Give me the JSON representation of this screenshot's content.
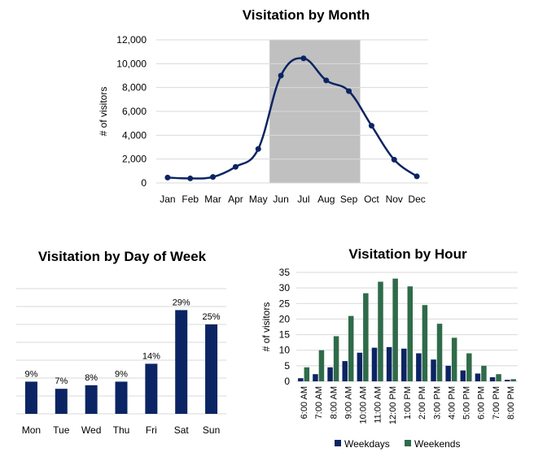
{
  "colors": {
    "navy": "#0b2463",
    "green": "#2f6b4a",
    "highlight": "#c0c0c0"
  },
  "chart_data": [
    {
      "type": "line",
      "title": "Visitation by Month",
      "ylabel": "# of visitors",
      "categories": [
        "Jan",
        "Feb",
        "Mar",
        "Apr",
        "May",
        "Jun",
        "Jul",
        "Aug",
        "Sep",
        "Oct",
        "Nov",
        "Dec"
      ],
      "values": [
        450,
        380,
        500,
        1350,
        2850,
        9000,
        10450,
        8600,
        7700,
        4800,
        1950,
        550
      ],
      "ylim": [
        0,
        12000
      ],
      "yticks": [
        0,
        2000,
        4000,
        6000,
        8000,
        10000,
        12000
      ],
      "ytick_labels": [
        "0",
        "2,000",
        "4,000",
        "6,000",
        "8,000",
        "10,000",
        "12,000"
      ],
      "highlight_range": [
        "Jun",
        "Sep"
      ],
      "grid": true,
      "legend": "none"
    },
    {
      "type": "bar",
      "title": "Visitation by Day of Week",
      "categories": [
        "Mon",
        "Tue",
        "Wed",
        "Thu",
        "Fri",
        "Sat",
        "Sun"
      ],
      "values": [
        9,
        7,
        8,
        9,
        14,
        29,
        25
      ],
      "data_labels": [
        "9%",
        "7%",
        "8%",
        "9%",
        "14%",
        "29%",
        "25%"
      ],
      "ylim": [
        0,
        35
      ],
      "grid": true,
      "legend": "none"
    },
    {
      "type": "bar",
      "title": "Visitation by Hour",
      "ylabel": "# of visitors",
      "categories": [
        "6:00 AM",
        "7:00 AM",
        "8:00 AM",
        "9:00 AM",
        "10:00 AM",
        "11:00 AM",
        "12:00 PM",
        "1:00 PM",
        "2:00 PM",
        "3:00 PM",
        "4:00 PM",
        "5:00 PM",
        "6:00 PM",
        "7:00 PM",
        "8:00 PM"
      ],
      "series": [
        {
          "name": "Weekdays",
          "values": [
            1,
            2.3,
            4.5,
            6.5,
            9.2,
            10.8,
            11,
            10.5,
            9,
            7,
            5,
            3.5,
            2.5,
            1.3,
            0.5
          ]
        },
        {
          "name": "Weekends",
          "values": [
            4.5,
            10,
            14.5,
            21,
            28.3,
            32,
            33,
            30.5,
            24.5,
            18.5,
            14,
            9,
            5,
            2.3,
            0.7
          ]
        }
      ],
      "ylim": [
        0,
        35
      ],
      "yticks": [
        0,
        5,
        10,
        15,
        20,
        25,
        30,
        35
      ],
      "ytick_labels": [
        "0",
        "5",
        "10",
        "15",
        "20",
        "25",
        "30",
        "35"
      ],
      "grid": true,
      "legend": "bottom"
    }
  ]
}
